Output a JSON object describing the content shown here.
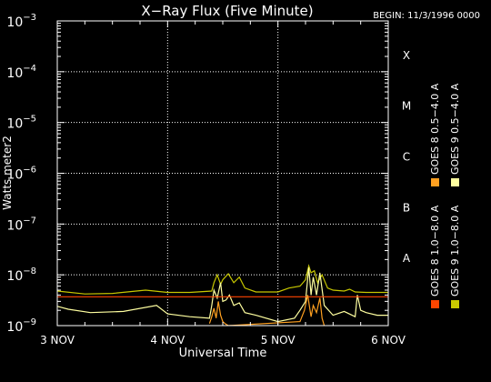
{
  "chart_data": {
    "type": "line",
    "title": "X−Ray Flux (Five Minute)",
    "begin_label": "BEGIN: 11/3/1996 0000",
    "xlabel": "Universal Time",
    "ylabel": "Watts meter2",
    "x_ticks": [
      "3 NOV",
      "4 NOV",
      "5 NOV",
      "6 NOV"
    ],
    "xlim": [
      0,
      3
    ],
    "y_scale": "log",
    "ylim": [
      1e-09,
      0.001
    ],
    "y_ticks": [
      {
        "base": "10",
        "exp": "−9",
        "value": 1e-09
      },
      {
        "base": "10",
        "exp": "−8",
        "value": 1e-08
      },
      {
        "base": "10",
        "exp": "−7",
        "value": 1e-07
      },
      {
        "base": "10",
        "exp": "−6",
        "value": 1e-06
      },
      {
        "base": "10",
        "exp": "−5",
        "value": 1e-05
      },
      {
        "base": "10",
        "exp": "−4",
        "value": 0.0001
      },
      {
        "base": "10",
        "exp": "−3",
        "value": 0.001
      }
    ],
    "flare_classes": [
      {
        "label": "A",
        "value": 1e-08
      },
      {
        "label": "B",
        "value": 1e-07
      },
      {
        "label": "C",
        "value": 1e-06
      },
      {
        "label": "M",
        "value": 1e-05
      },
      {
        "label": "X",
        "value": 0.0001
      }
    ],
    "grid": "dotted",
    "legend_position": "right",
    "colors": {
      "background": "#000000",
      "axes": "#ffffff",
      "goes8_long": "#ff4500",
      "goes8_short": "#ffa020",
      "goes9_long": "#c8c800",
      "goes9_short": "#ffffa0"
    },
    "series": [
      {
        "name": "GOES 9 1.0−8.0 A",
        "color": "#c8c800",
        "x": [
          0.0,
          0.25,
          0.5,
          0.8,
          1.0,
          1.2,
          1.4,
          1.42,
          1.45,
          1.48,
          1.5,
          1.55,
          1.6,
          1.65,
          1.7,
          1.8,
          2.0,
          2.1,
          2.2,
          2.25,
          2.28,
          2.3,
          2.33,
          2.36,
          2.4,
          2.45,
          2.5,
          2.6,
          2.65,
          2.7,
          2.8,
          3.0
        ],
        "values": [
          4.8e-09,
          4.2e-09,
          4.3e-09,
          5e-09,
          4.5e-09,
          4.5e-09,
          4.8e-09,
          7e-09,
          1e-08,
          6.5e-09,
          8e-09,
          1.05e-08,
          7e-09,
          9e-09,
          5.5e-09,
          4.6e-09,
          4.6e-09,
          5.5e-09,
          6e-09,
          8e-09,
          1.5e-08,
          1.1e-08,
          1.2e-08,
          7e-09,
          1e-08,
          5.5e-09,
          5e-09,
          4.8e-09,
          5.2e-09,
          4.6e-09,
          4.5e-09,
          4.5e-09
        ]
      },
      {
        "name": "GOES 9 0.5−4.0 A",
        "color": "#ffffa0",
        "x": [
          0.0,
          0.1,
          0.3,
          0.6,
          0.9,
          1.0,
          1.2,
          1.38,
          1.4,
          1.42,
          1.45,
          1.48,
          1.5,
          1.53,
          1.56,
          1.6,
          1.65,
          1.7,
          1.8,
          2.0,
          2.15,
          2.2,
          2.25,
          2.28,
          2.3,
          2.32,
          2.35,
          2.38,
          2.42,
          2.5,
          2.6,
          2.7,
          2.72,
          2.75,
          2.8,
          2.9,
          3.0
        ],
        "values": [
          2.4e-09,
          2.1e-09,
          1.8e-09,
          1.9e-09,
          2.5e-09,
          1.7e-09,
          1.5e-09,
          1.4e-09,
          2.5e-09,
          5e-09,
          3.5e-09,
          7e-09,
          3e-09,
          3.2e-09,
          4e-09,
          2.5e-09,
          2.8e-09,
          1.8e-09,
          1.6e-09,
          1.2e-09,
          1.4e-09,
          2e-09,
          3e-09,
          1.4e-08,
          4e-09,
          9e-09,
          4e-09,
          1.1e-08,
          2.5e-09,
          1.6e-09,
          1.9e-09,
          1.5e-09,
          4e-09,
          2e-09,
          1.8e-09,
          1.6e-09,
          1.6e-09
        ]
      },
      {
        "name": "GOES 8 1.0−8.0 A",
        "color": "#ff4500",
        "x": [
          0.0,
          3.0
        ],
        "values": [
          3.7e-09,
          3.7e-09
        ]
      },
      {
        "name": "GOES 8 0.5−4.0 A",
        "color": "#ffa020",
        "x": [
          1.38,
          1.4,
          1.42,
          1.44,
          1.46,
          1.48,
          1.5,
          1.52,
          1.55,
          2.2,
          2.24,
          2.27,
          2.3,
          2.32,
          2.35,
          2.38,
          2.4,
          2.42
        ],
        "values": [
          1.1e-09,
          1.5e-09,
          2.2e-09,
          1.4e-09,
          3e-09,
          1.6e-09,
          1.2e-09,
          1.1e-09,
          1e-09,
          1.2e-09,
          2e-09,
          4e-09,
          1.5e-09,
          2.5e-09,
          1.8e-09,
          3.5e-09,
          1.4e-09,
          1e-09
        ]
      }
    ]
  }
}
